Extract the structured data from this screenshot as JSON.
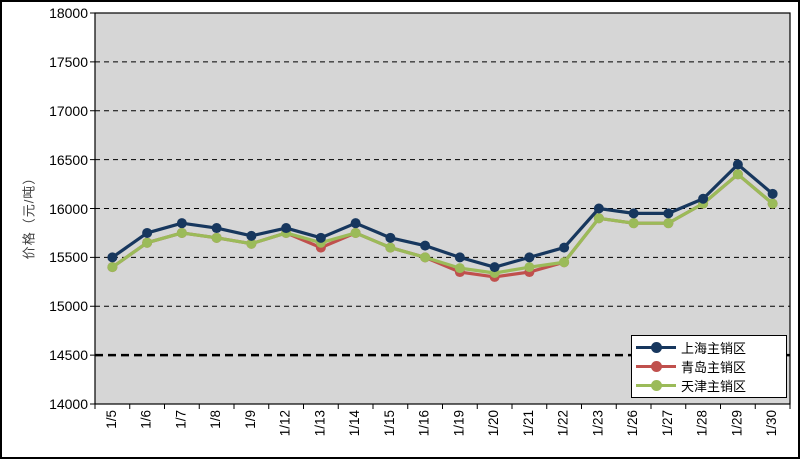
{
  "window": {
    "background": "#ffffff",
    "frame_border_color": "#000000"
  },
  "chart_data": {
    "type": "line",
    "title": "",
    "xlabel": "",
    "ylabel": "价格（元/吨）",
    "ylim": [
      14000,
      18000
    ],
    "y_step": 500,
    "y_ticks": [
      "14000",
      "14500",
      "15000",
      "15500",
      "16000",
      "16500",
      "17000",
      "17500",
      "18000"
    ],
    "grid": "horizontal-dashed",
    "highlight_gridline": 14500,
    "plot_bg": "#d6d6d6",
    "legend_position": "bottom-right",
    "categories": [
      "1/5",
      "1/6",
      "1/7",
      "1/8",
      "1/9",
      "1/12",
      "1/13",
      "1/14",
      "1/15",
      "1/16",
      "1/19",
      "1/20",
      "1/21",
      "1/22",
      "1/23",
      "1/26",
      "1/27",
      "1/28",
      "1/29",
      "1/30"
    ],
    "series": [
      {
        "name": "上海主销区",
        "color": "#17375e",
        "values": [
          15500,
          15750,
          15850,
          15800,
          15720,
          15800,
          15700,
          15850,
          15700,
          15620,
          15500,
          15400,
          15500,
          15600,
          16000,
          15950,
          15950,
          16100,
          16450,
          16150
        ]
      },
      {
        "name": "青岛主销区",
        "color": "#c0504d",
        "values": [
          15400,
          15650,
          15750,
          15700,
          15640,
          15750,
          15600,
          15750,
          15600,
          15500,
          15350,
          15300,
          15350,
          15450,
          15900,
          15850,
          15850,
          16050,
          16350,
          16050
        ]
      },
      {
        "name": "天津主销区",
        "color": "#9bbb59",
        "values": [
          15400,
          15650,
          15750,
          15700,
          15640,
          15750,
          15650,
          15750,
          15600,
          15500,
          15390,
          15340,
          15400,
          15450,
          15900,
          15850,
          15850,
          16050,
          16350,
          16050
        ]
      }
    ],
    "draw_order": [
      1,
      2,
      0
    ]
  },
  "legend": {
    "items": [
      {
        "label": "上海主销区",
        "color": "#17375e"
      },
      {
        "label": "青岛主销区",
        "color": "#c0504d"
      },
      {
        "label": "天津主销区",
        "color": "#9bbb59"
      }
    ]
  }
}
